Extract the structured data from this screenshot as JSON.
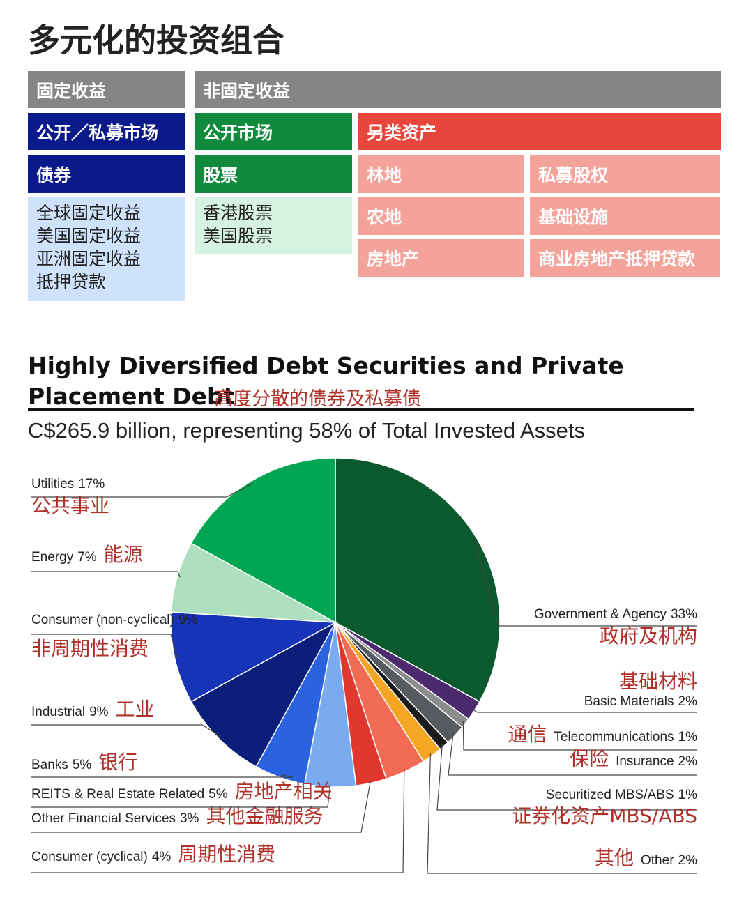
{
  "header": {
    "title": "多元化的投资组合"
  },
  "table": {
    "groups": [
      "固定收益",
      "非固定收益"
    ],
    "markets": [
      "公开／私募市场",
      "公开市场",
      "另类资产"
    ],
    "classes": [
      "债券",
      "股票"
    ],
    "fixed_income": [
      "全球固定收益",
      "美国固定收益",
      "亚洲固定收益",
      "抵押贷款"
    ],
    "equities": [
      "香港股票",
      "美国股票"
    ],
    "alternatives": [
      "林地",
      "私募股权",
      "农地",
      "基础设施",
      "房地产",
      "商业房地产抵押贷款"
    ]
  },
  "chart_data": {
    "type": "pie",
    "title": "Highly Diversified Debt Securities and Private Placement Debt",
    "title_cn": "高度分散的债券及私募债",
    "subtitle": "C$265.9 billion, representing 58% of Total Invested Assets",
    "categories": [
      "Government & Agency",
      "Basic Materials",
      "Telecommunications",
      "Insurance",
      "Securitized MBS/ABS",
      "Other",
      "Consumer (cyclical)",
      "Other Financial Services",
      "REITS & Real Estate Related",
      "Banks",
      "Industrial",
      "Consumer (non-cyclical)",
      "Energy",
      "Utilities"
    ],
    "categories_cn": [
      "政府及机构",
      "基础材料",
      "通信",
      "保险",
      "证券化资产MBS/ABS",
      "其他",
      "周期性消费",
      "其他金融服务",
      "房地产相关",
      "银行",
      "工业",
      "非周期性消费",
      "能源",
      "公共事业"
    ],
    "values": [
      33,
      2,
      1,
      2,
      1,
      2,
      4,
      3,
      5,
      5,
      9,
      9,
      7,
      17
    ],
    "value_labels": [
      "33%",
      "2%",
      "1%",
      "2%",
      "1%",
      "2%",
      "4%",
      "3%",
      "5%",
      "5%",
      "9%",
      "9%",
      "7%",
      "17%"
    ],
    "colors": [
      "#0b5a2e",
      "#4b2a6e",
      "#8c8c8c",
      "#555b60",
      "#1a1a1a",
      "#f5a623",
      "#f26b55",
      "#e0382e",
      "#7aaaf0",
      "#2b62e0",
      "#0b1f7a",
      "#1733b8",
      "#aee0c0",
      "#00a651"
    ]
  }
}
